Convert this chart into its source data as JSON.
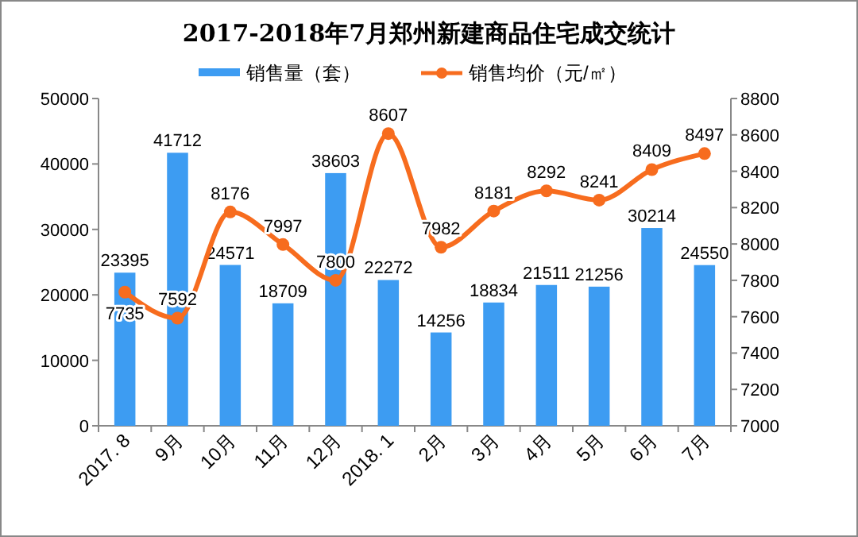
{
  "chart_data": {
    "type": "bar",
    "title": "2017-2018年7月郑州新建商品住宅成交统计",
    "categories": [
      "2017. 8",
      "9月",
      "10月",
      "11月",
      "12月",
      "2018. 1",
      "2月",
      "3月",
      "4月",
      "5月",
      "6月",
      "7月"
    ],
    "series": [
      {
        "name": "销售量（套）",
        "color": "#3d9cf2",
        "values": [
          23395,
          41712,
          24571,
          18709,
          38603,
          22272,
          14256,
          18834,
          21511,
          21256,
          30214,
          24550
        ]
      },
      {
        "name": "销售均价（元/㎡）",
        "type": "line",
        "axis": "y2",
        "color": "#f76c1e",
        "marker": "circle",
        "values": [
          7735,
          7592,
          8176,
          7997,
          7800,
          8607,
          7982,
          8181,
          8292,
          8241,
          8409,
          8497
        ]
      }
    ],
    "ylim": [
      0,
      50000
    ],
    "yticks": [
      0,
      10000,
      20000,
      30000,
      40000,
      50000
    ],
    "y2lim": [
      7000,
      8800
    ],
    "y2ticks": [
      7000,
      7200,
      7400,
      7600,
      7800,
      8000,
      8200,
      8400,
      8600,
      8800
    ],
    "data_labels": true,
    "legend": "top"
  }
}
